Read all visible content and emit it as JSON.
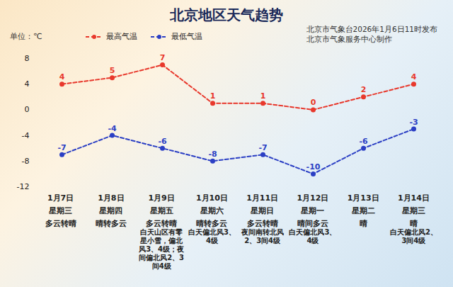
{
  "chart_data": {
    "type": "line",
    "title": "北京地区天气趋势",
    "unit_label": "单位：℃",
    "notes": [
      "北京市气象台2026年1月6日11时发布",
      "北京市气象服务中心制作"
    ],
    "categories": [
      "1月7日",
      "1月8日",
      "1月9日",
      "1月10日",
      "1月11日",
      "1月12日",
      "1月13日",
      "1月14日"
    ],
    "weekdays": [
      "星期三",
      "星期四",
      "星期五",
      "星期六",
      "星期日",
      "星期一",
      "星期二",
      "星期三"
    ],
    "weather": [
      "多云转晴",
      "晴转多云",
      "多云转晴",
      "晴转多云",
      "多云转晴",
      "晴间多云",
      "晴",
      "晴"
    ],
    "wind": [
      null,
      null,
      "白天山区有零星小雪，偏北风3、4级；夜间偏北风2、3间4级",
      "白天偏北风3、4级",
      "夜间南转北风2、3间4级",
      "白天偏北风3、4级",
      null,
      "白天偏北风2、3间4级"
    ],
    "series": [
      {
        "name": "最高气温",
        "color": "#e8382c",
        "values": [
          4,
          5,
          7,
          1,
          1,
          0,
          2,
          4
        ]
      },
      {
        "name": "最低气温",
        "color": "#2b3fc4",
        "values": [
          -7,
          -4,
          -6,
          -8,
          -7,
          -10,
          -6,
          -3
        ]
      }
    ],
    "ylim": [
      -12,
      8
    ],
    "yticks": [
      -12,
      -8,
      -4,
      0,
      4,
      8
    ],
    "marker": "circle",
    "line_style": "dashed",
    "data_labels": true,
    "legend": "top-left",
    "tick_labels": "y",
    "grid": false
  }
}
